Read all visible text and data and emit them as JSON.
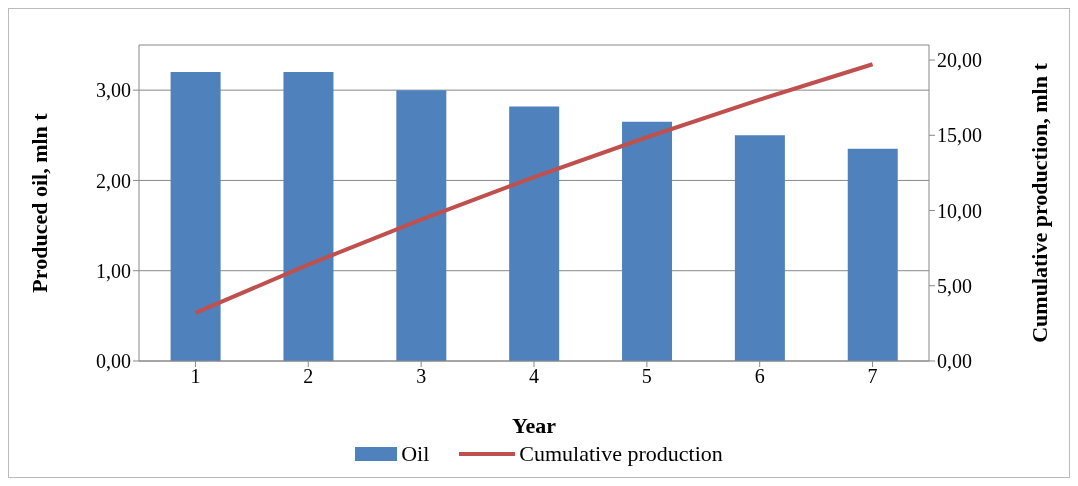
{
  "chart_data": {
    "type": "bar",
    "xlabel": "Year",
    "ylabel": "Produced oil, mln t",
    "y2label": "Cumulative production, mln t",
    "categories": [
      "1",
      "2",
      "3",
      "4",
      "5",
      "6",
      "7"
    ],
    "series": [
      {
        "name": "Oil",
        "color": "#4f81bd",
        "values": [
          3.2,
          3.2,
          3.0,
          2.82,
          2.65,
          2.5,
          2.35
        ]
      },
      {
        "name": "Cumulative production",
        "type": "line",
        "axis": "y2",
        "color": "#c0504d",
        "values": [
          3.2,
          6.4,
          9.4,
          12.22,
          14.87,
          17.37,
          19.72
        ]
      }
    ],
    "ylim": [
      0,
      3.5
    ],
    "yticks": [
      {
        "value": 0,
        "label": "0,00"
      },
      {
        "value": 1,
        "label": "1,00"
      },
      {
        "value": 2,
        "label": "2,00"
      },
      {
        "value": 3,
        "label": "3,00"
      }
    ],
    "y2lim": [
      0,
      21
    ],
    "y2ticks": [
      {
        "value": 0,
        "label": "0,00"
      },
      {
        "value": 5,
        "label": "5,00"
      },
      {
        "value": 10,
        "label": "10,00"
      },
      {
        "value": 15,
        "label": "15,00"
      },
      {
        "value": 20,
        "label": "20,00"
      }
    ],
    "grid": "y",
    "legend": "bottom",
    "marker": "none",
    "line_style": "solid"
  }
}
